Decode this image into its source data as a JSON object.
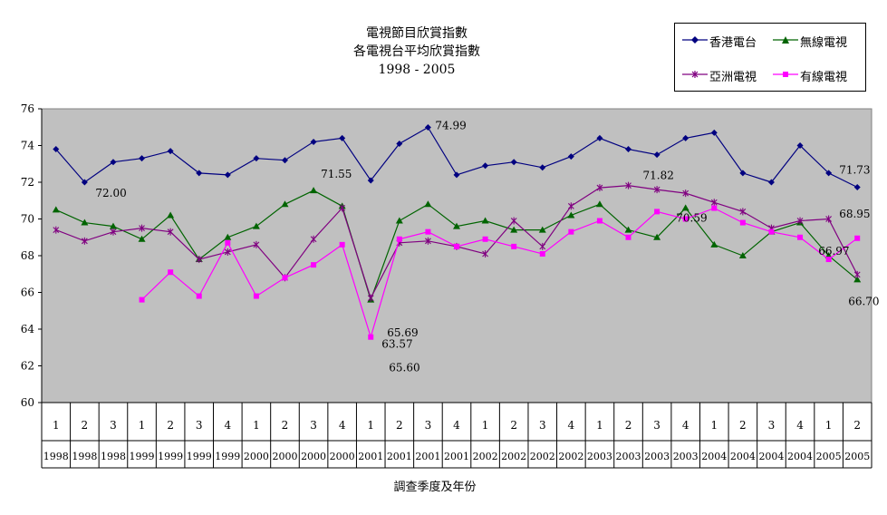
{
  "chart_data": {
    "type": "line",
    "title": [
      "電視節目欣賞指數",
      "各電視台平均欣賞指數",
      "1998 - 2005"
    ],
    "xlabel": "調查季度及年份",
    "ylabel": "",
    "ylim": [
      60,
      76
    ],
    "yticks": [
      60,
      62,
      64,
      66,
      68,
      70,
      72,
      74,
      76
    ],
    "grid": false,
    "legend_position": "top-right",
    "categories": [
      {
        "q": "1",
        "year": "1998"
      },
      {
        "q": "2",
        "year": "1998"
      },
      {
        "q": "3",
        "year": "1998"
      },
      {
        "q": "1",
        "year": "1999"
      },
      {
        "q": "2",
        "year": "1999"
      },
      {
        "q": "3",
        "year": "1999"
      },
      {
        "q": "4",
        "year": "1999"
      },
      {
        "q": "1",
        "year": "2000"
      },
      {
        "q": "2",
        "year": "2000"
      },
      {
        "q": "3",
        "year": "2000"
      },
      {
        "q": "4",
        "year": "2000"
      },
      {
        "q": "1",
        "year": "2001"
      },
      {
        "q": "2",
        "year": "2001"
      },
      {
        "q": "3",
        "year": "2001"
      },
      {
        "q": "4",
        "year": "2001"
      },
      {
        "q": "1",
        "year": "2002"
      },
      {
        "q": "2",
        "year": "2002"
      },
      {
        "q": "3",
        "year": "2002"
      },
      {
        "q": "4",
        "year": "2002"
      },
      {
        "q": "1",
        "year": "2003"
      },
      {
        "q": "2",
        "year": "2003"
      },
      {
        "q": "3",
        "year": "2003"
      },
      {
        "q": "4",
        "year": "2003"
      },
      {
        "q": "1",
        "year": "2004"
      },
      {
        "q": "2",
        "year": "2004"
      },
      {
        "q": "3",
        "year": "2004"
      },
      {
        "q": "4",
        "year": "2004"
      },
      {
        "q": "1",
        "year": "2005"
      },
      {
        "q": "2",
        "year": "2005"
      }
    ],
    "series": [
      {
        "name": "香港電台",
        "color": "#000080",
        "marker": "diamond",
        "values": [
          73.8,
          72.0,
          73.1,
          73.3,
          73.7,
          72.5,
          72.4,
          73.3,
          73.2,
          74.2,
          74.4,
          72.1,
          74.1,
          74.99,
          72.4,
          72.9,
          73.1,
          72.8,
          73.4,
          74.4,
          73.8,
          73.5,
          74.4,
          74.7,
          72.5,
          72.0,
          74.0,
          72.5,
          71.73
        ]
      },
      {
        "name": "無線電視",
        "color": "#006400",
        "marker": "triangle",
        "values": [
          70.5,
          69.8,
          69.6,
          68.9,
          70.2,
          67.8,
          69.0,
          69.6,
          70.8,
          71.55,
          70.7,
          65.6,
          69.9,
          70.8,
          69.6,
          69.9,
          69.4,
          69.4,
          70.2,
          70.8,
          69.4,
          69.0,
          70.6,
          68.6,
          68.0,
          69.3,
          69.8,
          68.0,
          66.7
        ]
      },
      {
        "name": "亞洲電視",
        "color": "#800080",
        "marker": "star",
        "values": [
          69.4,
          68.8,
          69.3,
          69.5,
          69.3,
          67.8,
          68.2,
          68.6,
          66.8,
          68.9,
          70.6,
          65.69,
          68.7,
          68.8,
          68.5,
          68.1,
          69.9,
          68.5,
          70.7,
          71.7,
          71.82,
          71.6,
          71.4,
          70.9,
          70.4,
          69.5,
          69.9,
          70.0,
          66.97
        ]
      },
      {
        "name": "有線電視",
        "color": "#ff00ff",
        "marker": "square",
        "values": [
          null,
          null,
          null,
          65.6,
          67.1,
          65.8,
          68.7,
          65.8,
          66.8,
          67.5,
          68.6,
          63.57,
          68.9,
          69.3,
          68.5,
          68.9,
          68.5,
          68.1,
          69.3,
          69.9,
          69.0,
          70.4,
          70.0,
          70.59,
          69.8,
          69.3,
          69.0,
          67.8,
          68.95
        ]
      }
    ],
    "data_labels": [
      "72.00",
      "74.99",
      "71.55",
      "65.69",
      "65.60",
      "63.57",
      "71.82",
      "70.59",
      "71.73",
      "68.95",
      "66.97",
      "66.70"
    ]
  }
}
